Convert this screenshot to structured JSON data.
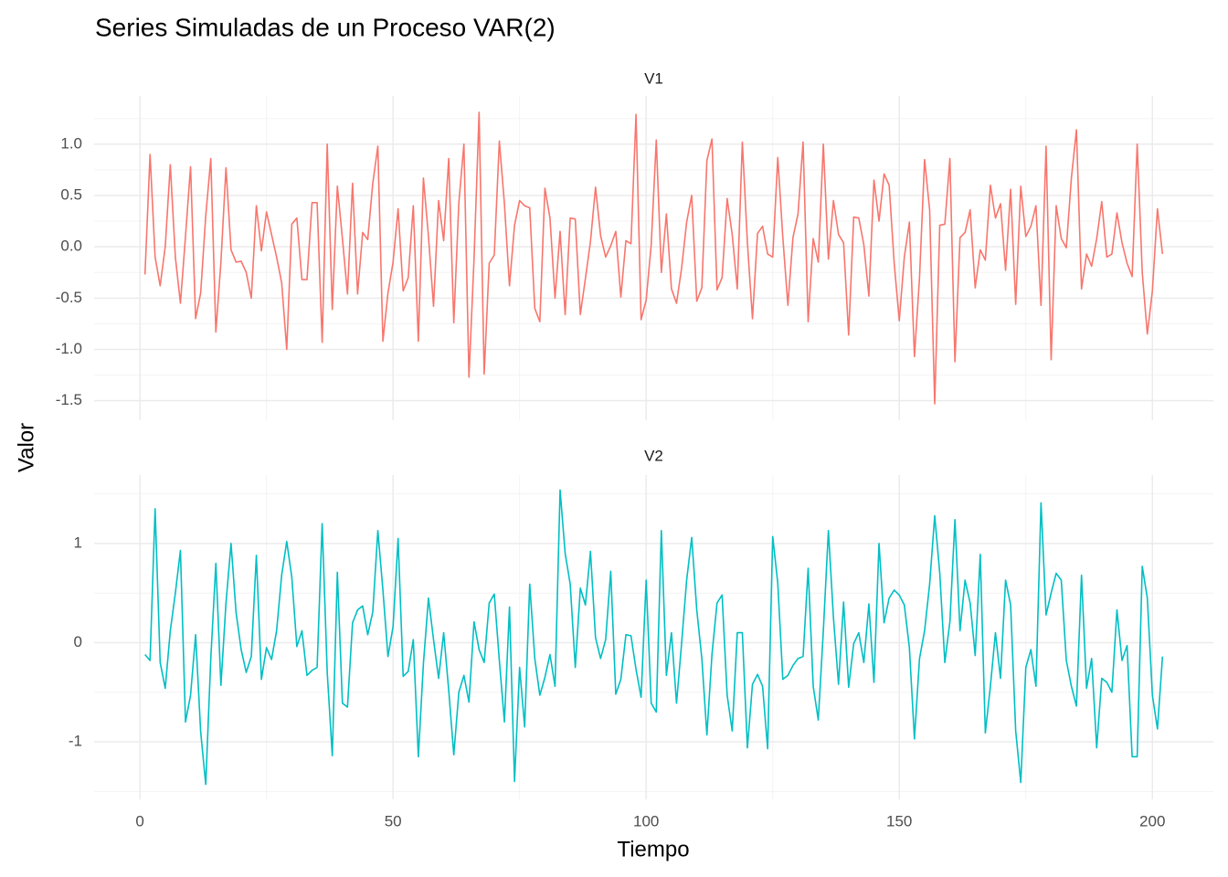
{
  "chart_data": {
    "type": "line",
    "title": "Series Simuladas de un Proceso VAR(2)",
    "x_label": "Tiempo",
    "y_label": "Valor",
    "xlim": [
      -9.05,
      212.05
    ],
    "xticks": [
      0,
      50,
      100,
      150,
      200
    ],
    "x_minor_ticks": [
      25,
      75,
      125,
      175
    ],
    "grid": true,
    "x": [
      1,
      2,
      3,
      4,
      5,
      6,
      7,
      8,
      9,
      10,
      11,
      12,
      13,
      14,
      15,
      16,
      17,
      18,
      19,
      20,
      21,
      22,
      23,
      24,
      25,
      26,
      27,
      28,
      29,
      30,
      31,
      32,
      33,
      34,
      35,
      36,
      37,
      38,
      39,
      40,
      41,
      42,
      43,
      44,
      45,
      46,
      47,
      48,
      49,
      50,
      51,
      52,
      53,
      54,
      55,
      56,
      57,
      58,
      59,
      60,
      61,
      62,
      63,
      64,
      65,
      66,
      67,
      68,
      69,
      70,
      71,
      72,
      73,
      74,
      75,
      76,
      77,
      78,
      79,
      80,
      81,
      82,
      83,
      84,
      85,
      86,
      87,
      88,
      89,
      90,
      91,
      92,
      93,
      94,
      95,
      96,
      97,
      98,
      99,
      100,
      101,
      102,
      103,
      104,
      105,
      106,
      107,
      108,
      109,
      110,
      111,
      112,
      113,
      114,
      115,
      116,
      117,
      118,
      119,
      120,
      121,
      122,
      123,
      124,
      125,
      126,
      127,
      128,
      129,
      130,
      131,
      132,
      133,
      134,
      135,
      136,
      137,
      138,
      139,
      140,
      141,
      142,
      143,
      144,
      145,
      146,
      147,
      148,
      149,
      150,
      151,
      152,
      153,
      154,
      155,
      156,
      157,
      158,
      159,
      160,
      161,
      162,
      163,
      164,
      165,
      166,
      167,
      168,
      169,
      170,
      171,
      172,
      173,
      174,
      175,
      176,
      177,
      178,
      179,
      180,
      181,
      182,
      183,
      184,
      185,
      186,
      187,
      188,
      189,
      190,
      191,
      192,
      193,
      194,
      195,
      196,
      197,
      198,
      199,
      200,
      201,
      202
    ],
    "series": [
      {
        "name": "V1",
        "color": "#F8766D",
        "ylim": [
          -1.69,
          1.47
        ],
        "yticks": [
          {
            "value": 1,
            "label": "1.0"
          },
          0.5,
          {
            "value": 0,
            "label": "0.0"
          },
          -0.5,
          {
            "value": -1,
            "label": "-1.0"
          },
          -1.5
        ],
        "y_minor_ticks": [
          1.25,
          0.75,
          0.25,
          -0.25,
          -0.75,
          -1.25
        ],
        "values": [
          -0.27,
          0.9,
          -0.1,
          -0.38,
          0.0,
          0.8,
          -0.1,
          -0.55,
          0.1,
          0.78,
          -0.7,
          -0.45,
          0.3,
          0.86,
          -0.83,
          -0.15,
          0.77,
          -0.03,
          -0.15,
          -0.14,
          -0.25,
          -0.5,
          0.4,
          -0.04,
          0.34,
          0.12,
          -0.1,
          -0.35,
          -1.0,
          0.22,
          0.28,
          -0.32,
          -0.32,
          0.43,
          0.43,
          -0.93,
          1.0,
          -0.61,
          0.59,
          0.08,
          -0.46,
          0.62,
          -0.46,
          0.14,
          0.07,
          0.62,
          0.98,
          -0.92,
          -0.45,
          -0.15,
          0.37,
          -0.43,
          -0.3,
          0.4,
          -0.92,
          0.67,
          0.1,
          -0.58,
          0.45,
          0.06,
          0.86,
          -0.74,
          0.43,
          1.0,
          -1.27,
          -0.12,
          1.31,
          -1.24,
          -0.16,
          -0.08,
          1.03,
          0.42,
          -0.38,
          0.21,
          0.45,
          0.4,
          0.38,
          -0.6,
          -0.73,
          0.57,
          0.28,
          -0.5,
          0.15,
          -0.66,
          0.28,
          0.27,
          -0.66,
          -0.31,
          0.05,
          0.58,
          0.11,
          -0.1,
          0.01,
          0.15,
          -0.49,
          0.06,
          0.03,
          1.29,
          -0.71,
          -0.52,
          0.02,
          1.04,
          -0.25,
          0.32,
          -0.41,
          -0.55,
          -0.21,
          0.24,
          0.5,
          -0.53,
          -0.4,
          0.84,
          1.05,
          -0.42,
          -0.3,
          0.47,
          0.12,
          -0.41,
          1.02,
          0.04,
          -0.7,
          0.13,
          0.2,
          -0.07,
          -0.1,
          0.87,
          0.09,
          -0.57,
          0.09,
          0.32,
          1.02,
          -0.73,
          0.08,
          -0.15,
          1.0,
          -0.12,
          0.45,
          0.12,
          0.04,
          -0.86,
          0.29,
          0.28,
          0.02,
          -0.48,
          0.65,
          0.25,
          0.71,
          0.6,
          -0.16,
          -0.72,
          -0.1,
          0.24,
          -1.07,
          -0.3,
          0.85,
          0.36,
          -1.53,
          0.21,
          0.22,
          0.86,
          -1.12,
          0.09,
          0.14,
          0.36,
          -0.4,
          -0.03,
          -0.13,
          0.6,
          0.28,
          0.42,
          -0.23,
          0.56,
          -0.56,
          0.59,
          0.1,
          0.2,
          0.4,
          -0.57,
          0.98,
          -1.1,
          0.4,
          0.08,
          -0.01,
          0.67,
          1.14,
          -0.41,
          -0.07,
          -0.19,
          0.08,
          0.44,
          -0.1,
          -0.07,
          0.33,
          0.04,
          -0.16,
          -0.29,
          1.0,
          -0.25,
          -0.85,
          -0.43,
          0.37,
          -0.07
        ]
      },
      {
        "name": "V2",
        "color": "#00BFC4",
        "ylim": [
          -1.58,
          1.69
        ],
        "yticks": [
          1,
          0,
          -1
        ],
        "y_minor_ticks": [
          1.5,
          0.5,
          -0.5,
          -1.5
        ],
        "values": [
          -0.12,
          -0.18,
          1.35,
          -0.2,
          -0.46,
          0.12,
          0.5,
          0.93,
          -0.8,
          -0.53,
          0.08,
          -0.9,
          -1.43,
          -0.16,
          0.8,
          -0.43,
          0.4,
          1.0,
          0.3,
          -0.07,
          -0.3,
          -0.14,
          0.88,
          -0.37,
          -0.05,
          -0.17,
          0.12,
          0.68,
          1.02,
          0.66,
          -0.04,
          0.12,
          -0.33,
          -0.28,
          -0.25,
          1.2,
          -0.3,
          -1.14,
          0.71,
          -0.61,
          -0.65,
          0.2,
          0.33,
          0.37,
          0.08,
          0.31,
          1.13,
          0.53,
          -0.14,
          0.16,
          1.05,
          -0.34,
          -0.29,
          0.03,
          -1.15,
          -0.21,
          0.45,
          0.03,
          -0.36,
          0.1,
          -0.48,
          -1.13,
          -0.5,
          -0.33,
          -0.6,
          0.21,
          -0.07,
          -0.2,
          0.4,
          0.49,
          -0.18,
          -0.8,
          0.36,
          -1.4,
          -0.25,
          -0.85,
          0.59,
          -0.16,
          -0.53,
          -0.35,
          -0.12,
          -0.44,
          1.54,
          0.9,
          0.59,
          -0.25,
          0.55,
          0.38,
          0.92,
          0.05,
          -0.16,
          0.03,
          0.72,
          -0.52,
          -0.37,
          0.08,
          0.07,
          -0.27,
          -0.55,
          0.63,
          -0.61,
          -0.7,
          1.13,
          -0.33,
          0.1,
          -0.61,
          -0.01,
          0.63,
          1.06,
          0.33,
          -0.16,
          -0.93,
          -0.12,
          0.4,
          0.48,
          -0.53,
          -0.89,
          0.1,
          0.1,
          -1.06,
          -0.42,
          -0.32,
          -0.44,
          -1.07,
          1.07,
          0.6,
          -0.37,
          -0.33,
          -0.23,
          -0.16,
          -0.14,
          0.75,
          -0.44,
          -0.78,
          0.12,
          1.13,
          0.25,
          -0.42,
          0.41,
          -0.45,
          -0.01,
          0.1,
          -0.2,
          0.39,
          -0.4,
          1.0,
          0.2,
          0.45,
          0.53,
          0.48,
          0.38,
          -0.05,
          -0.97,
          -0.16,
          0.12,
          0.59,
          1.28,
          0.7,
          -0.2,
          0.21,
          1.24,
          0.12,
          0.63,
          0.4,
          -0.13,
          0.89,
          -0.91,
          -0.44,
          0.1,
          -0.36,
          0.63,
          0.38,
          -0.89,
          -1.41,
          -0.25,
          -0.07,
          -0.44,
          1.41,
          0.28,
          0.5,
          0.7,
          0.63,
          -0.18,
          -0.44,
          -0.64,
          0.68,
          -0.46,
          -0.16,
          -1.06,
          -0.36,
          -0.4,
          -0.5,
          0.33,
          -0.18,
          -0.03,
          -1.15,
          -1.15,
          0.77,
          0.45,
          -0.53,
          -0.87,
          -0.14
        ]
      }
    ]
  }
}
